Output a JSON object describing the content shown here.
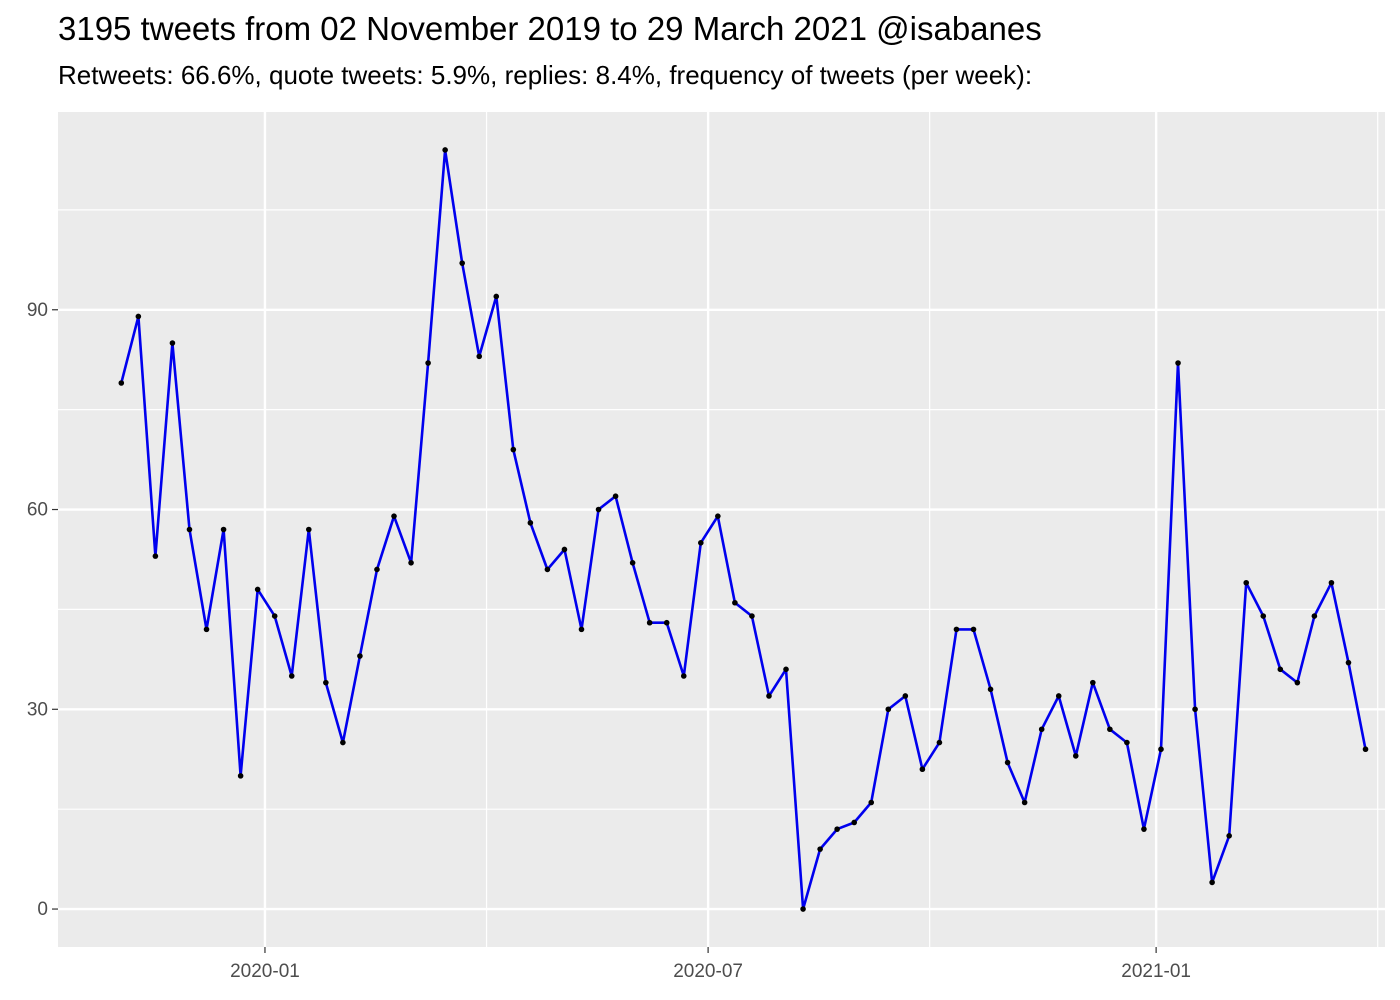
{
  "title": "3195 tweets from 02 November 2019 to 29 March 2021 @isabanes",
  "subtitle": "Retweets: 66.6%, quote tweets: 5.9%, replies: 8.4%, frequency of tweets (per week):",
  "chart_data": {
    "type": "line",
    "title": "3195 tweets from 02 November 2019 to 29 March 2021 @isabanes",
    "subtitle": "Retweets: 66.6%, quote tweets: 5.9%, replies: 8.4%, frequency of tweets (per week):",
    "xlabel": "",
    "ylabel": "",
    "x_ticks": [
      "2020-01",
      "2020-07",
      "2021-01"
    ],
    "y_ticks": [
      0,
      30,
      60,
      90
    ],
    "xlim": [
      "2019-10-08",
      "2021-04-05"
    ],
    "ylim": [
      -5.7,
      119.7
    ],
    "grid": true,
    "line_color": "#0000ee",
    "point_color": "#000000",
    "panel_color": "#ebebeb",
    "x": [
      "2019-11-03",
      "2019-11-10",
      "2019-11-17",
      "2019-11-24",
      "2019-12-01",
      "2019-12-08",
      "2019-12-15",
      "2019-12-22",
      "2019-12-29",
      "2020-01-05",
      "2020-01-12",
      "2020-01-19",
      "2020-01-26",
      "2020-02-02",
      "2020-02-09",
      "2020-02-16",
      "2020-02-23",
      "2020-03-01",
      "2020-03-08",
      "2020-03-15",
      "2020-03-22",
      "2020-03-29",
      "2020-04-05",
      "2020-04-12",
      "2020-04-19",
      "2020-04-26",
      "2020-05-03",
      "2020-05-10",
      "2020-05-17",
      "2020-05-24",
      "2020-05-31",
      "2020-06-07",
      "2020-06-14",
      "2020-06-21",
      "2020-06-28",
      "2020-07-05",
      "2020-07-12",
      "2020-07-19",
      "2020-07-26",
      "2020-08-02",
      "2020-08-09",
      "2020-08-16",
      "2020-08-23",
      "2020-08-30",
      "2020-09-06",
      "2020-09-13",
      "2020-09-20",
      "2020-09-27",
      "2020-10-04",
      "2020-10-11",
      "2020-10-18",
      "2020-10-25",
      "2020-11-01",
      "2020-11-08",
      "2020-11-15",
      "2020-11-22",
      "2020-11-29",
      "2020-12-06",
      "2020-12-13",
      "2020-12-20",
      "2020-12-27",
      "2021-01-03",
      "2021-01-10",
      "2021-01-17",
      "2021-01-24",
      "2021-01-31",
      "2021-02-07",
      "2021-02-14",
      "2021-02-21",
      "2021-02-28",
      "2021-03-07",
      "2021-03-14",
      "2021-03-21",
      "2021-03-28"
    ],
    "series": [
      {
        "values": [
          79,
          89,
          53,
          85,
          57,
          42,
          57,
          20,
          48,
          44,
          35,
          57,
          34,
          25,
          38,
          51,
          59,
          52,
          82,
          114,
          97,
          83,
          92,
          69,
          58,
          51,
          54,
          42,
          60,
          62,
          52,
          43,
          43,
          35,
          55,
          59,
          46,
          44,
          32,
          36,
          0,
          9,
          12,
          13,
          16,
          30,
          32,
          21,
          25,
          42,
          42,
          33,
          22,
          16,
          27,
          32,
          23,
          34,
          27,
          25,
          12,
          24,
          82,
          30,
          4,
          11,
          49,
          44,
          36,
          34,
          44,
          49,
          37,
          24
        ]
      }
    ]
  }
}
